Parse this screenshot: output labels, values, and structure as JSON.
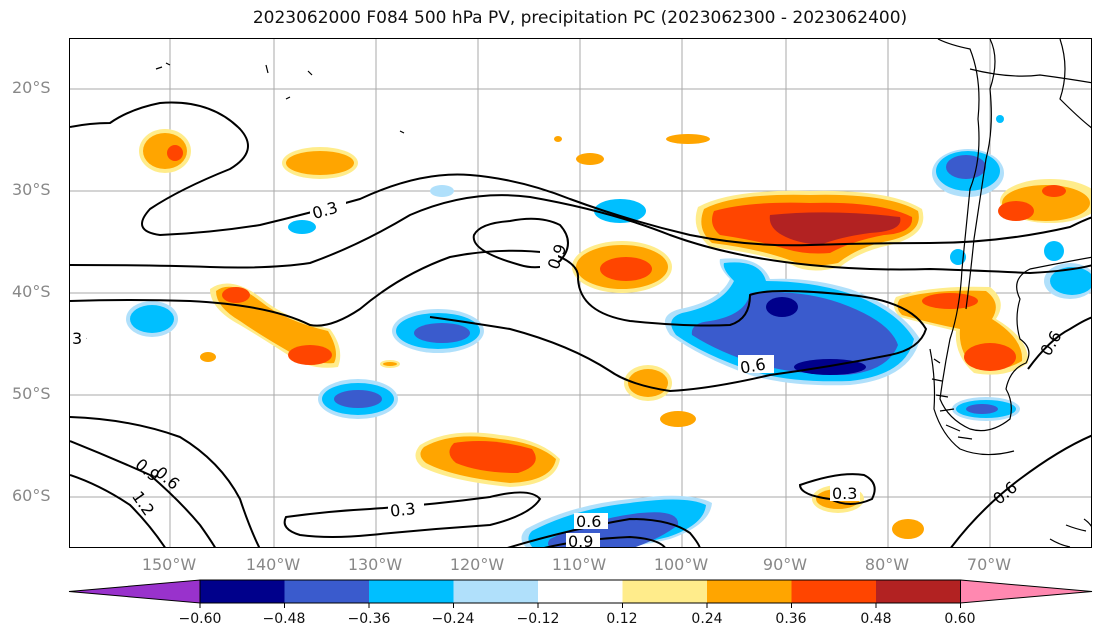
{
  "title": "2023062000 F084 500 hPa PV, precipitation PC (2023062300 - 2023062400)",
  "lat_labels": [
    "20°S",
    "30°S",
    "40°S",
    "50°S",
    "60°S"
  ],
  "lon_labels": [
    "150°W",
    "140°W",
    "130°W",
    "120°W",
    "110°W",
    "100°W",
    "90°W",
    "80°W",
    "70°W"
  ],
  "colorbar": {
    "tick_labels": [
      "−0.60",
      "−0.48",
      "−0.36",
      "−0.24",
      "−0.12",
      "0.12",
      "0.24",
      "0.36",
      "0.48",
      "0.60"
    ],
    "colors": [
      "#9932cc",
      "#00008b",
      "#3a5bcd",
      "#00bfff",
      "#b0e0fb",
      "#ffffff",
      "#ffec8b",
      "#ffa500",
      "#ff4500",
      "#b22222",
      "#ff88b0"
    ]
  },
  "contour_labels": [
    "0.3",
    "0.9",
    "0.6",
    "3",
    "0.6",
    "0.9",
    "1.2",
    "0.3",
    "0.6",
    "0.9",
    "0.3",
    "0.6",
    "0.6"
  ],
  "colors": {
    "blue_dark": "#00008b",
    "blue_mid": "#3a5bcd",
    "blue_light": "#00bfff",
    "blue_pale": "#b0e0fb",
    "yellow": "#ffec8b",
    "orange": "#ffa500",
    "red": "#ff4500",
    "dark_red": "#b22222"
  }
}
